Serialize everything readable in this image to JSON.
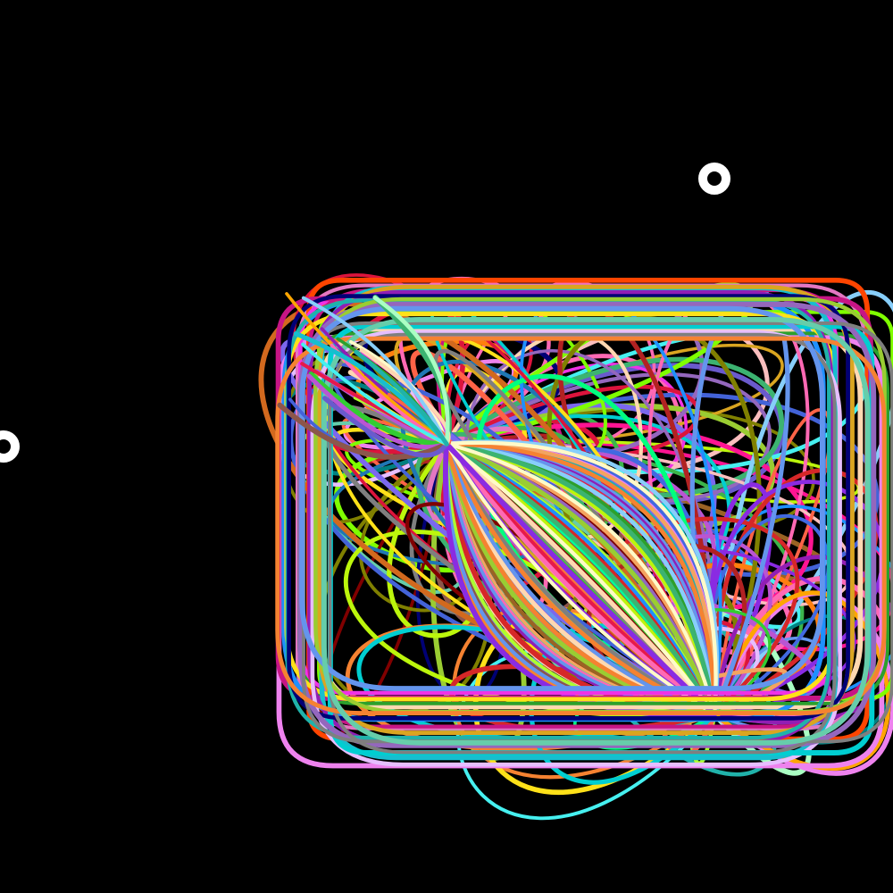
{
  "scene": {
    "background_color": "#000000",
    "marker_color": "#ffffff",
    "marker_icon": "ring-icon",
    "stroke_palette": [
      "#e6194b",
      "#3cb44b",
      "#ffe119",
      "#4363d8",
      "#f58231",
      "#911eb4",
      "#46f0f0",
      "#f032e6",
      "#bcf60c",
      "#fabebe",
      "#008080",
      "#e6beff",
      "#9a6324",
      "#fffac8",
      "#800000",
      "#aaffc3",
      "#808000",
      "#ffd8b1",
      "#000075",
      "#1f77b4",
      "#ff7f0e",
      "#2ca02c",
      "#d62728",
      "#9467bd",
      "#8c564b",
      "#e377c2",
      "#7f7f7f",
      "#17becf",
      "#00ff7f",
      "#ff1493",
      "#1e90ff",
      "#adff2f",
      "#ff4500",
      "#7b68ee",
      "#20b2aa",
      "#ff69b4",
      "#32cd32",
      "#8a2be2",
      "#00ced1",
      "#dc143c",
      "#ffa500",
      "#6a5acd",
      "#40e0d0",
      "#c71585",
      "#7fff00",
      "#4169e1",
      "#ff6347",
      "#9acd32",
      "#ba55d3",
      "#00fa9a",
      "#f4a460",
      "#6495ed",
      "#daa520",
      "#66cdaa",
      "#b22222",
      "#87cefa",
      "#ee82ee",
      "#3cb371",
      "#d2691e",
      "#5f9ea0"
    ]
  }
}
